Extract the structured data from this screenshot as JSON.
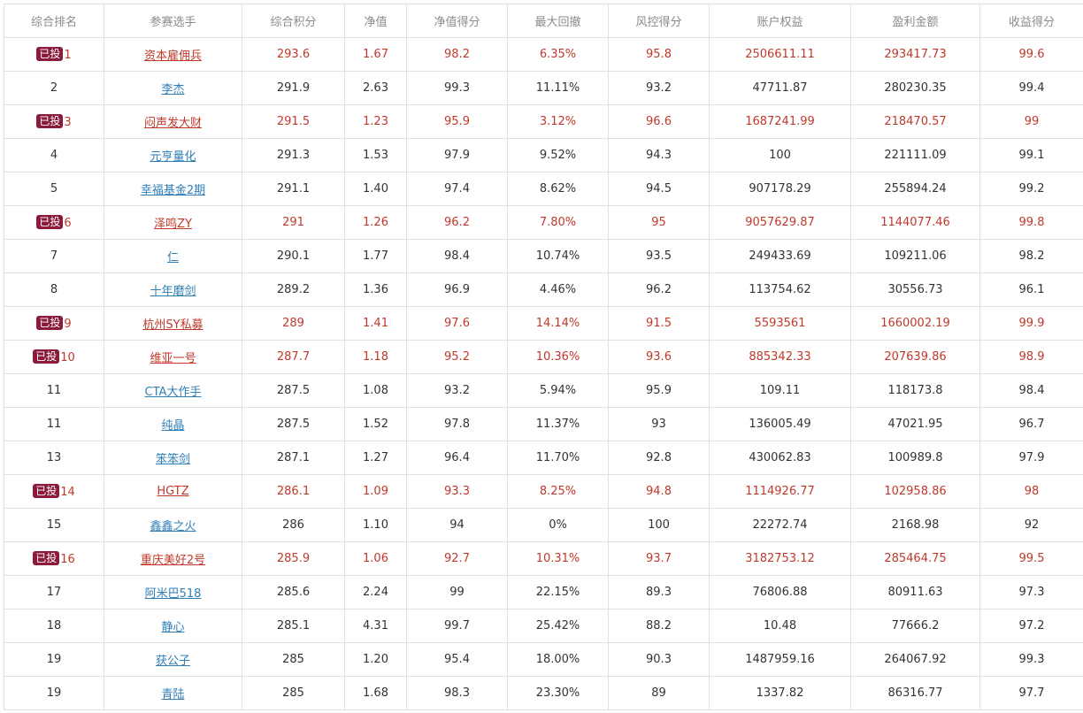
{
  "table": {
    "columns": [
      "综合排名",
      "参赛选手",
      "综合积分",
      "净值",
      "净值得分",
      "最大回撤",
      "风控得分",
      "账户权益",
      "盈利金额",
      "收益得分"
    ],
    "badge_label": "已投",
    "rows": [
      {
        "invested": true,
        "cells": [
          "1",
          "资本雇佣兵",
          "293.6",
          "1.67",
          "98.2",
          "6.35%",
          "95.8",
          "2506611.11",
          "293417.73",
          "99.6"
        ]
      },
      {
        "invested": false,
        "cells": [
          "2",
          "李杰",
          "291.9",
          "2.63",
          "99.3",
          "11.11%",
          "93.2",
          "47711.87",
          "280230.35",
          "99.4"
        ]
      },
      {
        "invested": true,
        "cells": [
          "3",
          "闷声发大财",
          "291.5",
          "1.23",
          "95.9",
          "3.12%",
          "96.6",
          "1687241.99",
          "218470.57",
          "99"
        ]
      },
      {
        "invested": false,
        "cells": [
          "4",
          "元亨量化",
          "291.3",
          "1.53",
          "97.9",
          "9.52%",
          "94.3",
          "100",
          "221111.09",
          "99.1"
        ]
      },
      {
        "invested": false,
        "cells": [
          "5",
          "幸福基金2期",
          "291.1",
          "1.40",
          "97.4",
          "8.62%",
          "94.5",
          "907178.29",
          "255894.24",
          "99.2"
        ]
      },
      {
        "invested": true,
        "cells": [
          "6",
          "泽鸣ZY",
          "291",
          "1.26",
          "96.2",
          "7.80%",
          "95",
          "9057629.87",
          "1144077.46",
          "99.8"
        ]
      },
      {
        "invested": false,
        "cells": [
          "7",
          "仁",
          "290.1",
          "1.77",
          "98.4",
          "10.74%",
          "93.5",
          "249433.69",
          "109211.06",
          "98.2"
        ]
      },
      {
        "invested": false,
        "cells": [
          "8",
          "十年磨剑",
          "289.2",
          "1.36",
          "96.9",
          "4.46%",
          "96.2",
          "113754.62",
          "30556.73",
          "96.1"
        ]
      },
      {
        "invested": true,
        "cells": [
          "9",
          "杭州SY私募",
          "289",
          "1.41",
          "97.6",
          "14.14%",
          "91.5",
          "5593561",
          "1660002.19",
          "99.9"
        ]
      },
      {
        "invested": true,
        "cells": [
          "10",
          "维亚一号",
          "287.7",
          "1.18",
          "95.2",
          "10.36%",
          "93.6",
          "885342.33",
          "207639.86",
          "98.9"
        ]
      },
      {
        "invested": false,
        "cells": [
          "11",
          "CTA大作手",
          "287.5",
          "1.08",
          "93.2",
          "5.94%",
          "95.9",
          "109.11",
          "118173.8",
          "98.4"
        ]
      },
      {
        "invested": false,
        "cells": [
          "11",
          "纯晶",
          "287.5",
          "1.52",
          "97.8",
          "11.37%",
          "93",
          "136005.49",
          "47021.95",
          "96.7"
        ]
      },
      {
        "invested": false,
        "cells": [
          "13",
          "笨笨剑",
          "287.1",
          "1.27",
          "96.4",
          "11.70%",
          "92.8",
          "430062.83",
          "100989.8",
          "97.9"
        ]
      },
      {
        "invested": true,
        "cells": [
          "14",
          "HGTZ",
          "286.1",
          "1.09",
          "93.3",
          "8.25%",
          "94.8",
          "1114926.77",
          "102958.86",
          "98"
        ]
      },
      {
        "invested": false,
        "cells": [
          "15",
          "鑫鑫之火",
          "286",
          "1.10",
          "94",
          "0%",
          "100",
          "22272.74",
          "2168.98",
          "92"
        ]
      },
      {
        "invested": true,
        "cells": [
          "16",
          "重庆美好2号",
          "285.9",
          "1.06",
          "92.7",
          "10.31%",
          "93.7",
          "3182753.12",
          "285464.75",
          "99.5"
        ]
      },
      {
        "invested": false,
        "cells": [
          "17",
          "阿米巴518",
          "285.6",
          "2.24",
          "99",
          "22.15%",
          "89.3",
          "76806.88",
          "80911.63",
          "97.3"
        ]
      },
      {
        "invested": false,
        "cells": [
          "18",
          "静心",
          "285.1",
          "4.31",
          "99.7",
          "25.42%",
          "88.2",
          "10.48",
          "77666.2",
          "97.2"
        ]
      },
      {
        "invested": false,
        "cells": [
          "19",
          "获公子",
          "285",
          "1.20",
          "95.4",
          "18.00%",
          "90.3",
          "1487959.16",
          "264067.92",
          "99.3"
        ]
      },
      {
        "invested": false,
        "cells": [
          "19",
          "青陆",
          "285",
          "1.68",
          "98.3",
          "23.30%",
          "89",
          "1337.82",
          "86316.77",
          "97.7"
        ]
      }
    ]
  },
  "colors": {
    "invested_text": "#c0392b",
    "link_text": "#2f7fb8",
    "badge_bg": "#8b1a3b",
    "header_text": "#8a8a8a",
    "border": "#e1e1e1"
  }
}
